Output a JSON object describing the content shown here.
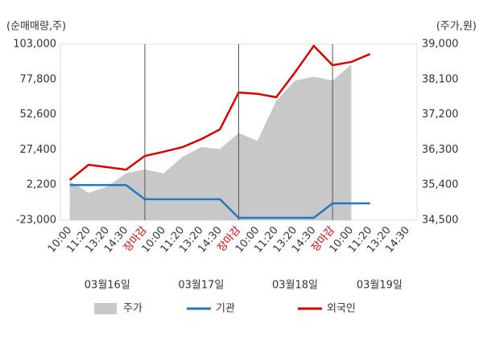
{
  "chart_data": {
    "type": "line",
    "y_label": "(순매매량,주)",
    "y2_label": "(주가,원)",
    "categories": [
      "10:00",
      "11:20",
      "13:20",
      "14:30",
      "장마감",
      "10:00",
      "11:20",
      "13:20",
      "14:30",
      "장마감",
      "10:00",
      "11:20",
      "13:20",
      "14:30",
      "장마감",
      "10:00",
      "11:20",
      "13:20",
      "14:30"
    ],
    "day_labels": [
      "03월16일",
      "03월17일",
      "03월18일",
      "03월19일"
    ],
    "ylim": [
      -23000,
      103000
    ],
    "yticks": [
      {
        "value": -23000,
        "label": "-23,000"
      },
      {
        "value": 2200,
        "label": "2,200"
      },
      {
        "value": 27400,
        "label": "27,400"
      },
      {
        "value": 52600,
        "label": "52,600"
      },
      {
        "value": 77800,
        "label": "77,800"
      },
      {
        "value": 103000,
        "label": "103,000"
      }
    ],
    "y2lim": [
      34500,
      39000
    ],
    "y2ticks": [
      {
        "value": 34500,
        "label": "34,500"
      },
      {
        "value": 35400,
        "label": "35,400"
      },
      {
        "value": 36300,
        "label": "36,300"
      },
      {
        "value": 37200,
        "label": "37,200"
      },
      {
        "value": 38100,
        "label": "38,100"
      },
      {
        "value": 39000,
        "label": "39,000"
      }
    ],
    "series": [
      {
        "name": "주가",
        "kind": "area",
        "axis": "y2",
        "color": "#c8c8c8",
        "values": [
          35500,
          35200,
          35360,
          35700,
          35800,
          35700,
          36120,
          36370,
          36320,
          36730,
          36530,
          37550,
          38070,
          38170,
          38070,
          38480,
          null,
          null,
          null
        ]
      },
      {
        "name": "기관",
        "color": "#1f78c8",
        "values": [
          2200,
          2200,
          2200,
          2200,
          -8000,
          -8000,
          -8000,
          -8000,
          -8000,
          -21300,
          -21300,
          -21300,
          -21300,
          -21300,
          -10900,
          -10900,
          -10900,
          null,
          null
        ]
      },
      {
        "name": "외국인",
        "color": "#e00000",
        "values": [
          5750,
          16700,
          15000,
          13200,
          23000,
          26000,
          29300,
          35000,
          42000,
          68400,
          67500,
          65000,
          82800,
          101800,
          88000,
          90300,
          96000,
          null,
          null
        ]
      }
    ]
  }
}
